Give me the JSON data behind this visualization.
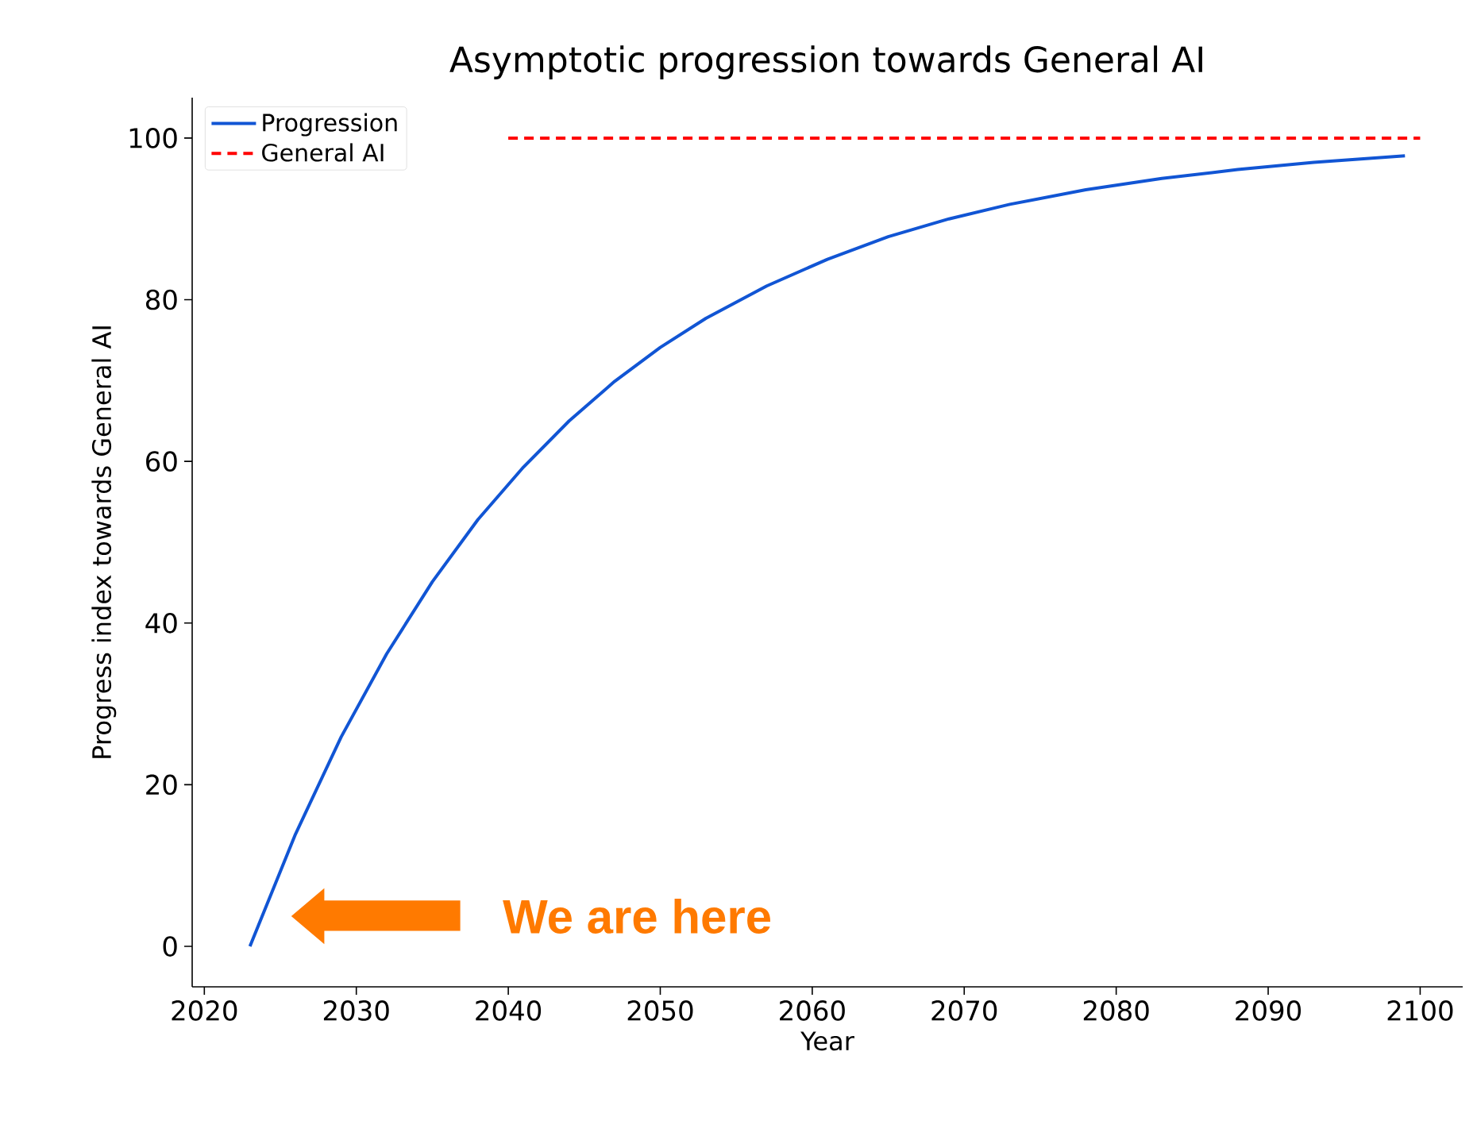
{
  "chart_data": {
    "type": "line",
    "title": "Asymptotic progression towards General AI",
    "xlabel": "Year",
    "ylabel": "Progress index towards General AI",
    "xlim": [
      2019.2,
      2102.8
    ],
    "ylim": [
      -5,
      105
    ],
    "xticks": [
      2020,
      2030,
      2040,
      2050,
      2060,
      2070,
      2080,
      2090,
      2100
    ],
    "yticks": [
      0,
      20,
      40,
      60,
      80,
      100
    ],
    "series": [
      {
        "name": "Progression",
        "color": "#1155d4",
        "line_style": "solid",
        "x": [
          2023,
          2026,
          2029,
          2032,
          2035,
          2038,
          2041,
          2044,
          2047,
          2050,
          2053,
          2057,
          2061,
          2065,
          2069,
          2073,
          2078,
          2083,
          2088,
          2093,
          2099
        ],
        "values": [
          0,
          13.9,
          25.9,
          36.2,
          45.1,
          52.8,
          59.3,
          65.0,
          69.9,
          74.1,
          77.7,
          81.7,
          85.0,
          87.8,
          90.0,
          91.8,
          93.6,
          95.0,
          96.1,
          97.0,
          97.8
        ]
      },
      {
        "name": "General AI",
        "color": "#ff0000",
        "line_style": "dashed",
        "x": [
          2040,
          2100
        ],
        "values": [
          100,
          100
        ]
      }
    ],
    "annotations": [
      "We are here"
    ],
    "legend": "top left",
    "grid": false,
    "marker": "none"
  }
}
